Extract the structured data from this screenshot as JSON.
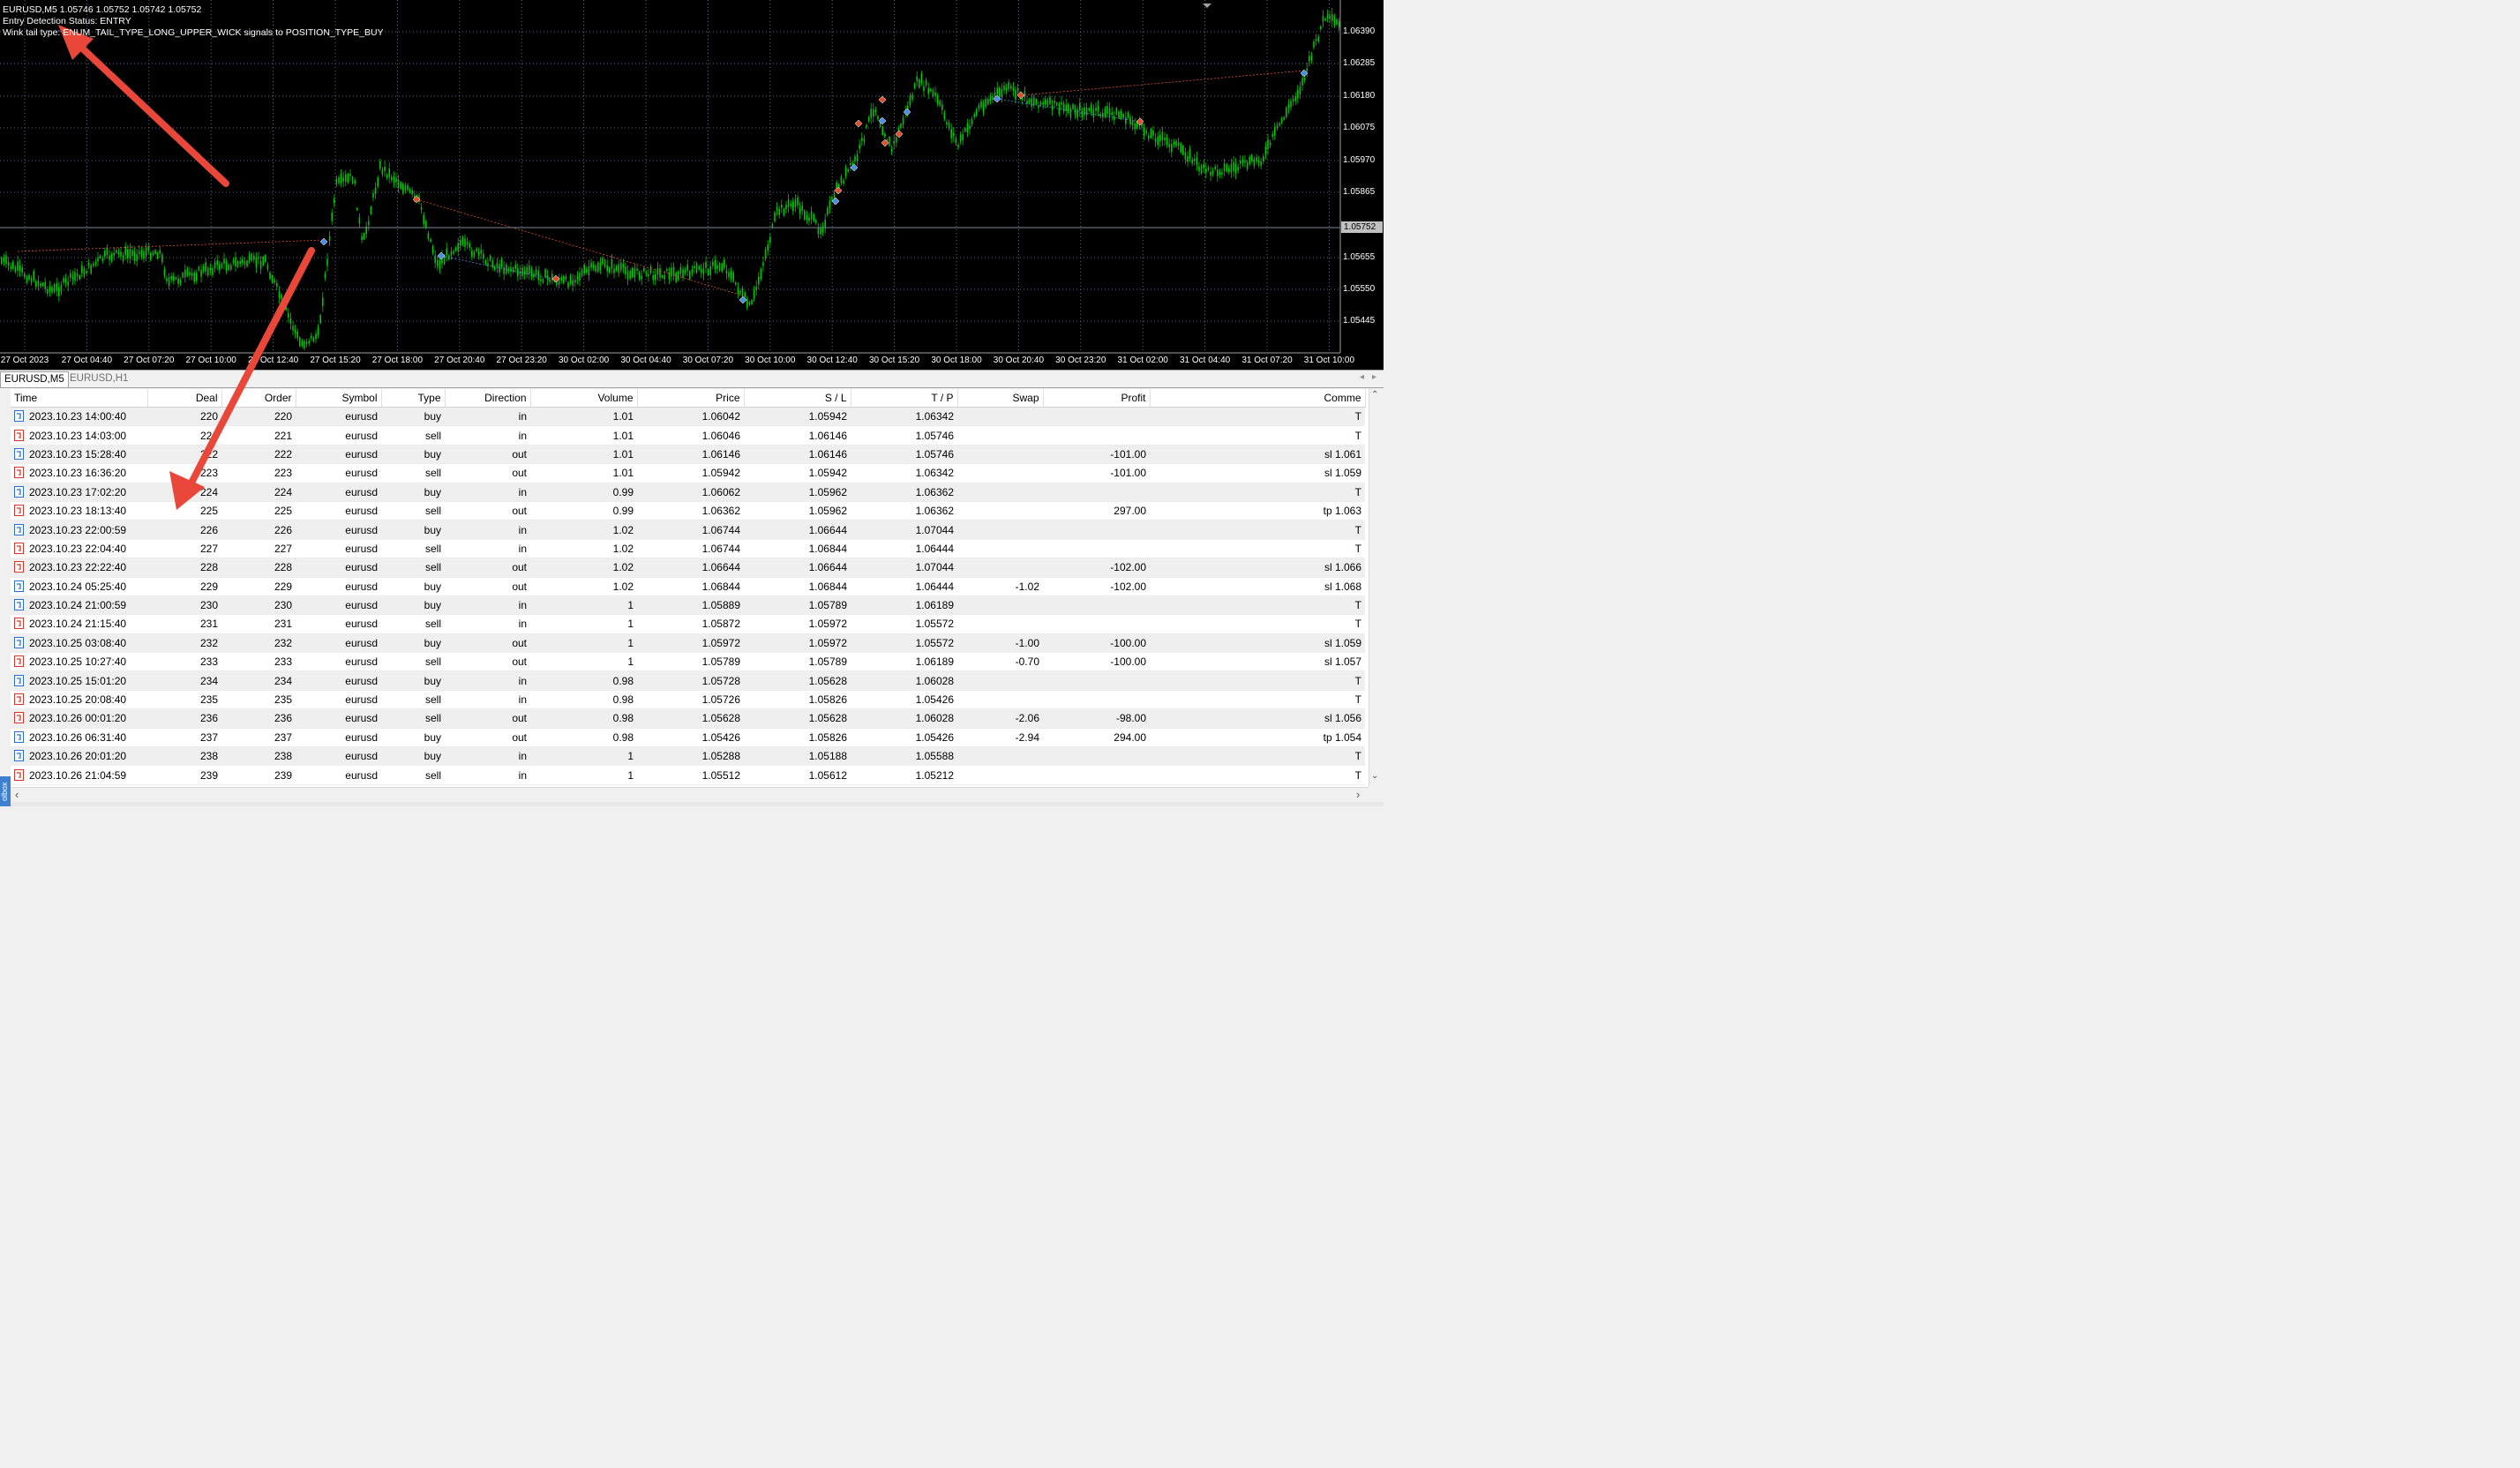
{
  "chart": {
    "symbol_line": "EURUSD,M5  1.05746 1.05752 1.05742 1.05752",
    "status_line": "Entry Detection Status: ENTRY",
    "tail_line": "Wink tail type: ENUM_TAIL_TYPE_LONG_UPPER_WICK signals to POSITION_TYPE_BUY",
    "price_axis": [
      "1.06390",
      "1.06285",
      "1.06180",
      "1.06075",
      "1.05970",
      "1.05865",
      "1.05655",
      "1.05550",
      "1.05445"
    ],
    "current_price": "1.05752",
    "time_axis": [
      "27 Oct 2023",
      "27 Oct 04:40",
      "27 Oct 07:20",
      "27 Oct 10:00",
      "27 Oct 12:40",
      "27 Oct 15:20",
      "27 Oct 18:00",
      "27 Oct 20:40",
      "27 Oct 23:20",
      "30 Oct 02:00",
      "30 Oct 04:40",
      "30 Oct 07:20",
      "30 Oct 10:00",
      "30 Oct 12:40",
      "30 Oct 15:20",
      "30 Oct 18:00",
      "30 Oct 20:40",
      "30 Oct 23:20",
      "31 Oct 02:00",
      "31 Oct 04:40",
      "31 Oct 07:20",
      "31 Oct 10:00"
    ],
    "colors": {
      "background": "#000000",
      "candles": "#00c800",
      "grid": "#5a6a7a",
      "buy_marker": "#4a90e2",
      "sell_marker": "#e05030",
      "arrow": "#e8473a"
    }
  },
  "tabs": [
    {
      "label": "EURUSD,M5",
      "active": true
    },
    {
      "label": "EURUSD,H1",
      "active": false
    }
  ],
  "table": {
    "columns": [
      "Time",
      "Deal",
      "Order",
      "Symbol",
      "Type",
      "Direction",
      "Volume",
      "Price",
      "S / L",
      "T / P",
      "Swap",
      "Profit",
      "Comme"
    ],
    "rows": [
      {
        "time": "2023.10.23 14:00:40",
        "deal": "220",
        "order": "220",
        "symbol": "eurusd",
        "type": "buy",
        "direction": "in",
        "volume": "1.01",
        "price": "1.06042",
        "sl": "1.05942",
        "tp": "1.06342",
        "swap": "",
        "profit": "",
        "comment": "T"
      },
      {
        "time": "2023.10.23 14:03:00",
        "deal": "221",
        "order": "221",
        "symbol": "eurusd",
        "type": "sell",
        "direction": "in",
        "volume": "1.01",
        "price": "1.06046",
        "sl": "1.06146",
        "tp": "1.05746",
        "swap": "",
        "profit": "",
        "comment": "T"
      },
      {
        "time": "2023.10.23 15:28:40",
        "deal": "222",
        "order": "222",
        "symbol": "eurusd",
        "type": "buy",
        "direction": "out",
        "volume": "1.01",
        "price": "1.06146",
        "sl": "1.06146",
        "tp": "1.05746",
        "swap": "",
        "profit": "-101.00",
        "comment": "sl 1.061"
      },
      {
        "time": "2023.10.23 16:36:20",
        "deal": "223",
        "order": "223",
        "symbol": "eurusd",
        "type": "sell",
        "direction": "out",
        "volume": "1.01",
        "price": "1.05942",
        "sl": "1.05942",
        "tp": "1.06342",
        "swap": "",
        "profit": "-101.00",
        "comment": "sl 1.059"
      },
      {
        "time": "2023.10.23 17:02:20",
        "deal": "224",
        "order": "224",
        "symbol": "eurusd",
        "type": "buy",
        "direction": "in",
        "volume": "0.99",
        "price": "1.06062",
        "sl": "1.05962",
        "tp": "1.06362",
        "swap": "",
        "profit": "",
        "comment": "T"
      },
      {
        "time": "2023.10.23 18:13:40",
        "deal": "225",
        "order": "225",
        "symbol": "eurusd",
        "type": "sell",
        "direction": "out",
        "volume": "0.99",
        "price": "1.06362",
        "sl": "1.05962",
        "tp": "1.06362",
        "swap": "",
        "profit": "297.00",
        "comment": "tp 1.063"
      },
      {
        "time": "2023.10.23 22:00:59",
        "deal": "226",
        "order": "226",
        "symbol": "eurusd",
        "type": "buy",
        "direction": "in",
        "volume": "1.02",
        "price": "1.06744",
        "sl": "1.06644",
        "tp": "1.07044",
        "swap": "",
        "profit": "",
        "comment": "T"
      },
      {
        "time": "2023.10.23 22:04:40",
        "deal": "227",
        "order": "227",
        "symbol": "eurusd",
        "type": "sell",
        "direction": "in",
        "volume": "1.02",
        "price": "1.06744",
        "sl": "1.06844",
        "tp": "1.06444",
        "swap": "",
        "profit": "",
        "comment": "T"
      },
      {
        "time": "2023.10.23 22:22:40",
        "deal": "228",
        "order": "228",
        "symbol": "eurusd",
        "type": "sell",
        "direction": "out",
        "volume": "1.02",
        "price": "1.06644",
        "sl": "1.06644",
        "tp": "1.07044",
        "swap": "",
        "profit": "-102.00",
        "comment": "sl 1.066"
      },
      {
        "time": "2023.10.24 05:25:40",
        "deal": "229",
        "order": "229",
        "symbol": "eurusd",
        "type": "buy",
        "direction": "out",
        "volume": "1.02",
        "price": "1.06844",
        "sl": "1.06844",
        "tp": "1.06444",
        "swap": "-1.02",
        "profit": "-102.00",
        "comment": "sl 1.068"
      },
      {
        "time": "2023.10.24 21:00:59",
        "deal": "230",
        "order": "230",
        "symbol": "eurusd",
        "type": "buy",
        "direction": "in",
        "volume": "1",
        "price": "1.05889",
        "sl": "1.05789",
        "tp": "1.06189",
        "swap": "",
        "profit": "",
        "comment": "T"
      },
      {
        "time": "2023.10.24 21:15:40",
        "deal": "231",
        "order": "231",
        "symbol": "eurusd",
        "type": "sell",
        "direction": "in",
        "volume": "1",
        "price": "1.05872",
        "sl": "1.05972",
        "tp": "1.05572",
        "swap": "",
        "profit": "",
        "comment": "T"
      },
      {
        "time": "2023.10.25 03:08:40",
        "deal": "232",
        "order": "232",
        "symbol": "eurusd",
        "type": "buy",
        "direction": "out",
        "volume": "1",
        "price": "1.05972",
        "sl": "1.05972",
        "tp": "1.05572",
        "swap": "-1.00",
        "profit": "-100.00",
        "comment": "sl 1.059"
      },
      {
        "time": "2023.10.25 10:27:40",
        "deal": "233",
        "order": "233",
        "symbol": "eurusd",
        "type": "sell",
        "direction": "out",
        "volume": "1",
        "price": "1.05789",
        "sl": "1.05789",
        "tp": "1.06189",
        "swap": "-0.70",
        "profit": "-100.00",
        "comment": "sl 1.057"
      },
      {
        "time": "2023.10.25 15:01:20",
        "deal": "234",
        "order": "234",
        "symbol": "eurusd",
        "type": "buy",
        "direction": "in",
        "volume": "0.98",
        "price": "1.05728",
        "sl": "1.05628",
        "tp": "1.06028",
        "swap": "",
        "profit": "",
        "comment": "T"
      },
      {
        "time": "2023.10.25 20:08:40",
        "deal": "235",
        "order": "235",
        "symbol": "eurusd",
        "type": "sell",
        "direction": "in",
        "volume": "0.98",
        "price": "1.05726",
        "sl": "1.05826",
        "tp": "1.05426",
        "swap": "",
        "profit": "",
        "comment": "T"
      },
      {
        "time": "2023.10.26 00:01:20",
        "deal": "236",
        "order": "236",
        "symbol": "eurusd",
        "type": "sell",
        "direction": "out",
        "volume": "0.98",
        "price": "1.05628",
        "sl": "1.05628",
        "tp": "1.06028",
        "swap": "-2.06",
        "profit": "-98.00",
        "comment": "sl 1.056"
      },
      {
        "time": "2023.10.26 06:31:40",
        "deal": "237",
        "order": "237",
        "symbol": "eurusd",
        "type": "buy",
        "direction": "out",
        "volume": "0.98",
        "price": "1.05426",
        "sl": "1.05826",
        "tp": "1.05426",
        "swap": "-2.94",
        "profit": "294.00",
        "comment": "tp 1.054"
      },
      {
        "time": "2023.10.26 20:01:20",
        "deal": "238",
        "order": "238",
        "symbol": "eurusd",
        "type": "buy",
        "direction": "in",
        "volume": "1",
        "price": "1.05288",
        "sl": "1.05188",
        "tp": "1.05588",
        "swap": "",
        "profit": "",
        "comment": "T"
      },
      {
        "time": "2023.10.26 21:04:59",
        "deal": "239",
        "order": "239",
        "symbol": "eurusd",
        "type": "sell",
        "direction": "in",
        "volume": "1",
        "price": "1.05512",
        "sl": "1.05612",
        "tp": "1.05212",
        "swap": "",
        "profit": "",
        "comment": "T"
      }
    ]
  },
  "toolbox_label": "olbox",
  "scroll_glyphs": {
    "up": "⌃",
    "down": "⌄",
    "left": "‹",
    "right": "›",
    "tab_left": "◂",
    "tab_right": "▸"
  }
}
